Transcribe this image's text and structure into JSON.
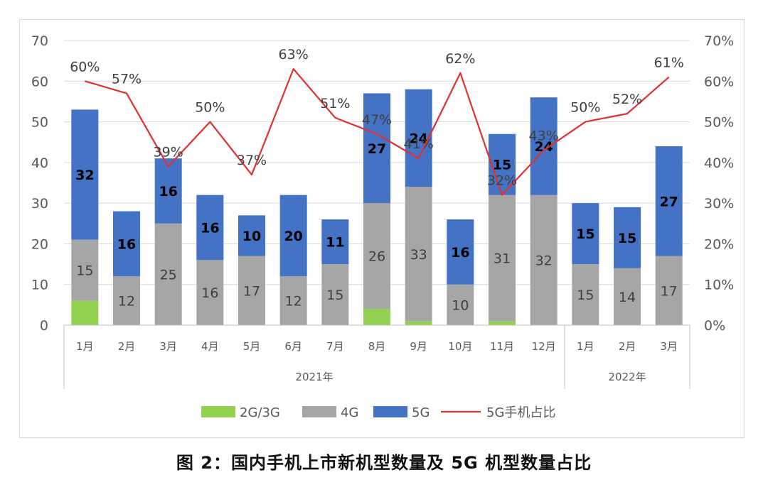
{
  "caption": "图 2：国内手机上市新机型数量及 5G 机型数量占比",
  "colors": {
    "2g3g": "#92d050",
    "4g": "#a6a6a6",
    "5g": "#4472c4",
    "ratio_line": "#e03030",
    "grid": "#d9d9d9"
  },
  "chart_data": {
    "type": "bar",
    "stacked": true,
    "secondary_line": true,
    "categories": [
      "1月",
      "2月",
      "3月",
      "4月",
      "5月",
      "6月",
      "7月",
      "8月",
      "9月",
      "10月",
      "11月",
      "12月",
      "1月",
      "2月",
      "3月"
    ],
    "groups": [
      {
        "label": "2021年",
        "count": 12
      },
      {
        "label": "2022年",
        "count": 3
      }
    ],
    "series": [
      {
        "name": "2G/3G",
        "values": [
          6,
          0,
          0,
          0,
          0,
          0,
          0,
          4,
          1,
          0,
          1,
          0,
          0,
          0,
          0
        ]
      },
      {
        "name": "4G",
        "values": [
          15,
          12,
          25,
          16,
          17,
          12,
          15,
          26,
          33,
          10,
          31,
          32,
          15,
          14,
          17
        ]
      },
      {
        "name": "5G",
        "values": [
          32,
          16,
          16,
          16,
          10,
          20,
          11,
          27,
          24,
          16,
          15,
          24,
          15,
          15,
          27
        ]
      }
    ],
    "line": {
      "name": "5G手机占比",
      "values": [
        60,
        57,
        39,
        50,
        37,
        63,
        51,
        47,
        41,
        62,
        32,
        43,
        50,
        52,
        61
      ],
      "labels": [
        "60%",
        "57%",
        "39%",
        "50%",
        "37%",
        "63%",
        "51%",
        "47%",
        "41%",
        "62%",
        "32%",
        "43%",
        "50%",
        "52%",
        "61%"
      ]
    },
    "y_left": {
      "min": 0,
      "max": 70,
      "ticks": [
        "0",
        "10",
        "20",
        "30",
        "40",
        "50",
        "60",
        "70"
      ]
    },
    "y_right": {
      "min": 0,
      "max": 70,
      "ticks": [
        "0%",
        "10%",
        "20%",
        "30%",
        "40%",
        "50%",
        "60%",
        "70%"
      ]
    },
    "grid": true,
    "legend_position": "bottom",
    "legend": [
      "2G/3G",
      "4G",
      "5G",
      "5G手机占比"
    ]
  }
}
